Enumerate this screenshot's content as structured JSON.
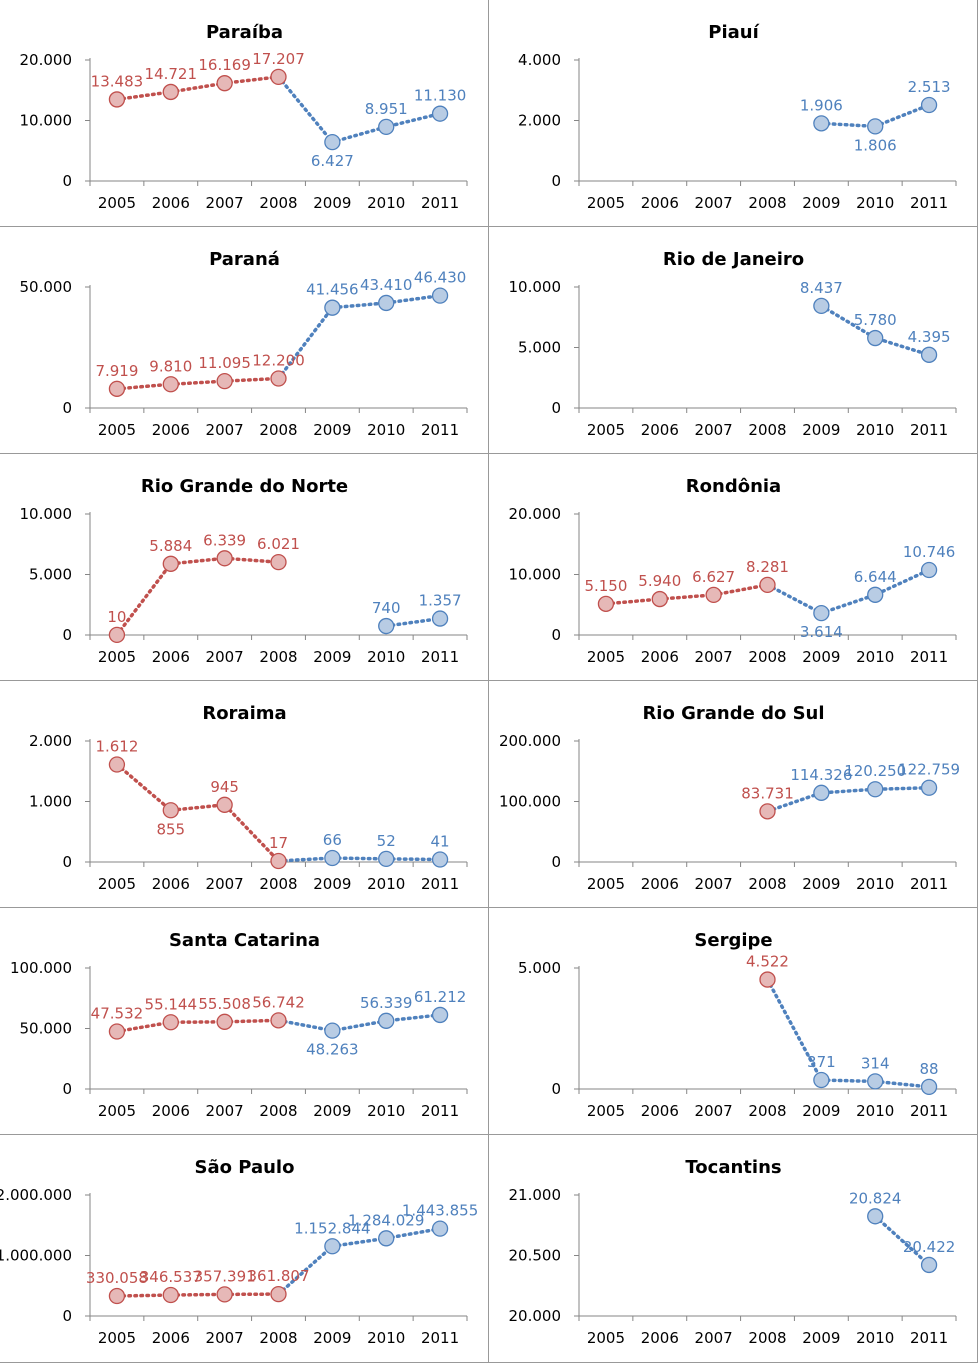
{
  "chart_data": [
    {
      "type": "line",
      "title": "Paraíba",
      "categories": [
        "2005",
        "2006",
        "2007",
        "2008",
        "2009",
        "2010",
        "2011"
      ],
      "yticks": [
        "20.000",
        "10.000",
        "0"
      ],
      "ylim": [
        0,
        20000
      ],
      "series": [
        {
          "color": "#c0504d",
          "values": [
            13483,
            14721,
            16169,
            17207,
            null,
            null,
            null
          ],
          "labels": [
            "13.483",
            "14.721",
            "16.169",
            "17.207",
            "",
            "",
            ""
          ]
        },
        {
          "color": "#4f81bd",
          "values": [
            null,
            null,
            null,
            17207,
            6427,
            8951,
            11130
          ],
          "labels": [
            "",
            "",
            "",
            "",
            "6.427",
            "8.951",
            "11.130"
          ]
        }
      ]
    },
    {
      "type": "line",
      "title": "Piauí",
      "categories": [
        "2005",
        "2006",
        "2007",
        "2008",
        "2009",
        "2010",
        "2011"
      ],
      "yticks": [
        "4.000",
        "2.000",
        "0"
      ],
      "ylim": [
        0,
        4000
      ],
      "series": [
        {
          "color": "#4f81bd",
          "values": [
            null,
            null,
            null,
            null,
            1906,
            1806,
            2513
          ],
          "labels": [
            "",
            "",
            "",
            "",
            "1.906",
            "1.806",
            "2.513"
          ]
        }
      ]
    },
    {
      "type": "line",
      "title": "Paraná",
      "categories": [
        "2005",
        "2006",
        "2007",
        "2008",
        "2009",
        "2010",
        "2011"
      ],
      "yticks": [
        "50.000",
        "0"
      ],
      "ylim": [
        0,
        50000
      ],
      "series": [
        {
          "color": "#c0504d",
          "values": [
            7919,
            9810,
            11095,
            12200,
            null,
            null,
            null
          ],
          "labels": [
            "7.919",
            "9.810",
            "11.095",
            "12.200",
            "",
            "",
            ""
          ]
        },
        {
          "color": "#4f81bd",
          "values": [
            null,
            null,
            null,
            12200,
            41456,
            43410,
            46430
          ],
          "labels": [
            "",
            "",
            "",
            "",
            "41.456",
            "43.410",
            "46.430"
          ]
        }
      ]
    },
    {
      "type": "line",
      "title": "Rio de Janeiro",
      "categories": [
        "2005",
        "2006",
        "2007",
        "2008",
        "2009",
        "2010",
        "2011"
      ],
      "yticks": [
        "10.000",
        "5.000",
        "0"
      ],
      "ylim": [
        0,
        10000
      ],
      "series": [
        {
          "color": "#4f81bd",
          "values": [
            null,
            null,
            null,
            null,
            8437,
            5780,
            4395
          ],
          "labels": [
            "",
            "",
            "",
            "",
            "8.437",
            "5.780",
            "4.395"
          ]
        }
      ]
    },
    {
      "type": "line",
      "title": "Rio Grande do Norte",
      "categories": [
        "2005",
        "2006",
        "2007",
        "2008",
        "2009",
        "2010",
        "2011"
      ],
      "yticks": [
        "10.000",
        "5.000",
        "0"
      ],
      "ylim": [
        0,
        10000
      ],
      "series": [
        {
          "color": "#c0504d",
          "values": [
            10,
            5884,
            6339,
            6021,
            null,
            null,
            null
          ],
          "labels": [
            "10",
            "5.884",
            "6.339",
            "6.021",
            "",
            "",
            ""
          ]
        },
        {
          "color": "#4f81bd",
          "values": [
            null,
            null,
            null,
            null,
            null,
            740,
            1357
          ],
          "labels": [
            "",
            "",
            "",
            "",
            "",
            "740",
            "1.357"
          ]
        }
      ]
    },
    {
      "type": "line",
      "title": "Rondônia",
      "categories": [
        "2005",
        "2006",
        "2007",
        "2008",
        "2009",
        "2010",
        "2011"
      ],
      "yticks": [
        "20.000",
        "10.000",
        "0"
      ],
      "ylim": [
        0,
        20000
      ],
      "series": [
        {
          "color": "#c0504d",
          "values": [
            5150,
            5940,
            6627,
            8281,
            null,
            null,
            null
          ],
          "labels": [
            "5.150",
            "5.940",
            "6.627",
            "8.281",
            "",
            "",
            ""
          ]
        },
        {
          "color": "#4f81bd",
          "values": [
            null,
            null,
            null,
            8281,
            3614,
            6644,
            10746
          ],
          "labels": [
            "",
            "",
            "",
            "",
            "3.614",
            "6.644",
            "10.746"
          ]
        }
      ]
    },
    {
      "type": "line",
      "title": "Roraima",
      "categories": [
        "2005",
        "2006",
        "2007",
        "2008",
        "2009",
        "2010",
        "2011"
      ],
      "yticks": [
        "2.000",
        "1.000",
        "0"
      ],
      "ylim": [
        0,
        2000
      ],
      "series": [
        {
          "color": "#c0504d",
          "values": [
            1612,
            855,
            945,
            17,
            null,
            null,
            null
          ],
          "labels": [
            "1.612",
            "855",
            "945",
            "17",
            "",
            "",
            ""
          ]
        },
        {
          "color": "#4f81bd",
          "values": [
            null,
            null,
            null,
            17,
            66,
            52,
            41
          ],
          "labels": [
            "",
            "",
            "",
            "",
            "66",
            "52",
            "41"
          ]
        }
      ]
    },
    {
      "type": "line",
      "title": "Rio Grande do Sul",
      "categories": [
        "2005",
        "2006",
        "2007",
        "2008",
        "2009",
        "2010",
        "2011"
      ],
      "yticks": [
        "200.000",
        "100.000",
        "0"
      ],
      "ylim": [
        0,
        200000
      ],
      "series": [
        {
          "color": "#c0504d",
          "values": [
            null,
            null,
            null,
            83731,
            null,
            null,
            null
          ],
          "labels": [
            "",
            "",
            "",
            "83.731",
            "",
            "",
            ""
          ]
        },
        {
          "color": "#4f81bd",
          "values": [
            null,
            null,
            null,
            83731,
            114326,
            120250,
            122759
          ],
          "labels": [
            "",
            "",
            "",
            "",
            "114.326",
            "120.250",
            "122.759"
          ]
        }
      ]
    },
    {
      "type": "line",
      "title": "Santa Catarina",
      "categories": [
        "2005",
        "2006",
        "2007",
        "2008",
        "2009",
        "2010",
        "2011"
      ],
      "yticks": [
        "100.000",
        "50.000",
        "0"
      ],
      "ylim": [
        0,
        100000
      ],
      "series": [
        {
          "color": "#c0504d",
          "values": [
            47532,
            55144,
            55508,
            56742,
            null,
            null,
            null
          ],
          "labels": [
            "47.532",
            "55.144",
            "55.508",
            "56.742",
            "",
            "",
            ""
          ]
        },
        {
          "color": "#4f81bd",
          "values": [
            null,
            null,
            null,
            56742,
            48263,
            56339,
            61212
          ],
          "labels": [
            "",
            "",
            "",
            "",
            "48.263",
            "56.339",
            "61.212"
          ]
        }
      ]
    },
    {
      "type": "line",
      "title": "Sergipe",
      "categories": [
        "2005",
        "2006",
        "2007",
        "2008",
        "2009",
        "2010",
        "2011"
      ],
      "yticks": [
        "5.000",
        "0"
      ],
      "ylim": [
        0,
        5000
      ],
      "series": [
        {
          "color": "#c0504d",
          "values": [
            null,
            null,
            null,
            4522,
            null,
            null,
            null
          ],
          "labels": [
            "",
            "",
            "",
            "4.522",
            "",
            "",
            ""
          ]
        },
        {
          "color": "#4f81bd",
          "values": [
            null,
            null,
            null,
            4522,
            371,
            314,
            88
          ],
          "labels": [
            "",
            "",
            "",
            "",
            "371",
            "314",
            "88"
          ]
        }
      ]
    },
    {
      "type": "line",
      "title": "São Paulo",
      "categories": [
        "2005",
        "2006",
        "2007",
        "2008",
        "2009",
        "2010",
        "2011"
      ],
      "yticks": [
        "2.000.000",
        "1.000.000",
        "0"
      ],
      "ylim": [
        0,
        2000000
      ],
      "series": [
        {
          "color": "#c0504d",
          "values": [
            330058,
            346537,
            357391,
            361807,
            null,
            null,
            null
          ],
          "labels": [
            "330.058",
            "346.537",
            "357.391",
            "361.807",
            "",
            "",
            ""
          ]
        },
        {
          "color": "#4f81bd",
          "values": [
            null,
            null,
            null,
            361807,
            1152844,
            1284029,
            1443855
          ],
          "labels": [
            "",
            "",
            "",
            "",
            "1.152.844",
            "1.284.029",
            "1.443.855"
          ]
        }
      ]
    },
    {
      "type": "line",
      "title": "Tocantins",
      "categories": [
        "2005",
        "2006",
        "2007",
        "2008",
        "2009",
        "2010",
        "2011"
      ],
      "yticks": [
        "21.000",
        "20.500",
        "20.000"
      ],
      "ylim": [
        20000,
        21000
      ],
      "series": [
        {
          "color": "#4f81bd",
          "values": [
            null,
            null,
            null,
            null,
            null,
            20824,
            20422
          ],
          "labels": [
            "",
            "",
            "",
            "",
            "",
            "20.824",
            "20.422"
          ]
        }
      ]
    }
  ]
}
